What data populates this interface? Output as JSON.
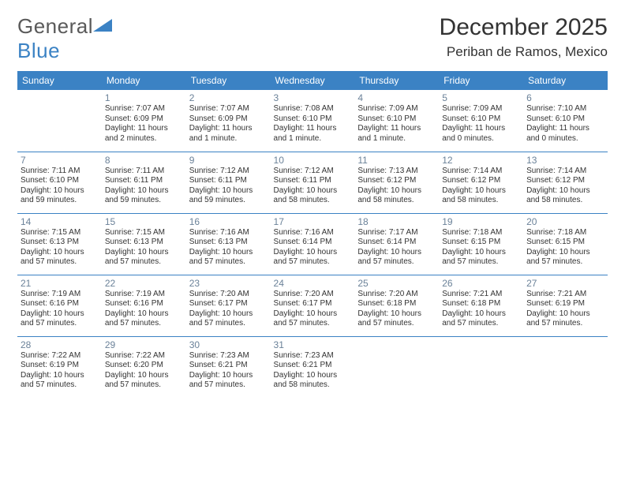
{
  "logo": {
    "text1": "General",
    "text2": "Blue"
  },
  "title": "December 2025",
  "location": "Periban de Ramos, Mexico",
  "colors": {
    "header_bg": "#3b82c4",
    "header_fg": "#ffffff",
    "daynum": "#6b8299",
    "border": "#3b82c4",
    "logo_gray": "#5a5a5a"
  },
  "weekdays": [
    "Sunday",
    "Monday",
    "Tuesday",
    "Wednesday",
    "Thursday",
    "Friday",
    "Saturday"
  ],
  "days": {
    "1": {
      "sr": "Sunrise: 7:07 AM",
      "ss": "Sunset: 6:09 PM",
      "dl": "Daylight: 11 hours and 2 minutes."
    },
    "2": {
      "sr": "Sunrise: 7:07 AM",
      "ss": "Sunset: 6:09 PM",
      "dl": "Daylight: 11 hours and 1 minute."
    },
    "3": {
      "sr": "Sunrise: 7:08 AM",
      "ss": "Sunset: 6:10 PM",
      "dl": "Daylight: 11 hours and 1 minute."
    },
    "4": {
      "sr": "Sunrise: 7:09 AM",
      "ss": "Sunset: 6:10 PM",
      "dl": "Daylight: 11 hours and 1 minute."
    },
    "5": {
      "sr": "Sunrise: 7:09 AM",
      "ss": "Sunset: 6:10 PM",
      "dl": "Daylight: 11 hours and 0 minutes."
    },
    "6": {
      "sr": "Sunrise: 7:10 AM",
      "ss": "Sunset: 6:10 PM",
      "dl": "Daylight: 11 hours and 0 minutes."
    },
    "7": {
      "sr": "Sunrise: 7:11 AM",
      "ss": "Sunset: 6:10 PM",
      "dl": "Daylight: 10 hours and 59 minutes."
    },
    "8": {
      "sr": "Sunrise: 7:11 AM",
      "ss": "Sunset: 6:11 PM",
      "dl": "Daylight: 10 hours and 59 minutes."
    },
    "9": {
      "sr": "Sunrise: 7:12 AM",
      "ss": "Sunset: 6:11 PM",
      "dl": "Daylight: 10 hours and 59 minutes."
    },
    "10": {
      "sr": "Sunrise: 7:12 AM",
      "ss": "Sunset: 6:11 PM",
      "dl": "Daylight: 10 hours and 58 minutes."
    },
    "11": {
      "sr": "Sunrise: 7:13 AM",
      "ss": "Sunset: 6:12 PM",
      "dl": "Daylight: 10 hours and 58 minutes."
    },
    "12": {
      "sr": "Sunrise: 7:14 AM",
      "ss": "Sunset: 6:12 PM",
      "dl": "Daylight: 10 hours and 58 minutes."
    },
    "13": {
      "sr": "Sunrise: 7:14 AM",
      "ss": "Sunset: 6:12 PM",
      "dl": "Daylight: 10 hours and 58 minutes."
    },
    "14": {
      "sr": "Sunrise: 7:15 AM",
      "ss": "Sunset: 6:13 PM",
      "dl": "Daylight: 10 hours and 57 minutes."
    },
    "15": {
      "sr": "Sunrise: 7:15 AM",
      "ss": "Sunset: 6:13 PM",
      "dl": "Daylight: 10 hours and 57 minutes."
    },
    "16": {
      "sr": "Sunrise: 7:16 AM",
      "ss": "Sunset: 6:13 PM",
      "dl": "Daylight: 10 hours and 57 minutes."
    },
    "17": {
      "sr": "Sunrise: 7:16 AM",
      "ss": "Sunset: 6:14 PM",
      "dl": "Daylight: 10 hours and 57 minutes."
    },
    "18": {
      "sr": "Sunrise: 7:17 AM",
      "ss": "Sunset: 6:14 PM",
      "dl": "Daylight: 10 hours and 57 minutes."
    },
    "19": {
      "sr": "Sunrise: 7:18 AM",
      "ss": "Sunset: 6:15 PM",
      "dl": "Daylight: 10 hours and 57 minutes."
    },
    "20": {
      "sr": "Sunrise: 7:18 AM",
      "ss": "Sunset: 6:15 PM",
      "dl": "Daylight: 10 hours and 57 minutes."
    },
    "21": {
      "sr": "Sunrise: 7:19 AM",
      "ss": "Sunset: 6:16 PM",
      "dl": "Daylight: 10 hours and 57 minutes."
    },
    "22": {
      "sr": "Sunrise: 7:19 AM",
      "ss": "Sunset: 6:16 PM",
      "dl": "Daylight: 10 hours and 57 minutes."
    },
    "23": {
      "sr": "Sunrise: 7:20 AM",
      "ss": "Sunset: 6:17 PM",
      "dl": "Daylight: 10 hours and 57 minutes."
    },
    "24": {
      "sr": "Sunrise: 7:20 AM",
      "ss": "Sunset: 6:17 PM",
      "dl": "Daylight: 10 hours and 57 minutes."
    },
    "25": {
      "sr": "Sunrise: 7:20 AM",
      "ss": "Sunset: 6:18 PM",
      "dl": "Daylight: 10 hours and 57 minutes."
    },
    "26": {
      "sr": "Sunrise: 7:21 AM",
      "ss": "Sunset: 6:18 PM",
      "dl": "Daylight: 10 hours and 57 minutes."
    },
    "27": {
      "sr": "Sunrise: 7:21 AM",
      "ss": "Sunset: 6:19 PM",
      "dl": "Daylight: 10 hours and 57 minutes."
    },
    "28": {
      "sr": "Sunrise: 7:22 AM",
      "ss": "Sunset: 6:19 PM",
      "dl": "Daylight: 10 hours and 57 minutes."
    },
    "29": {
      "sr": "Sunrise: 7:22 AM",
      "ss": "Sunset: 6:20 PM",
      "dl": "Daylight: 10 hours and 57 minutes."
    },
    "30": {
      "sr": "Sunrise: 7:23 AM",
      "ss": "Sunset: 6:21 PM",
      "dl": "Daylight: 10 hours and 57 minutes."
    },
    "31": {
      "sr": "Sunrise: 7:23 AM",
      "ss": "Sunset: 6:21 PM",
      "dl": "Daylight: 10 hours and 58 minutes."
    }
  },
  "grid": [
    [
      null,
      "1",
      "2",
      "3",
      "4",
      "5",
      "6"
    ],
    [
      "7",
      "8",
      "9",
      "10",
      "11",
      "12",
      "13"
    ],
    [
      "14",
      "15",
      "16",
      "17",
      "18",
      "19",
      "20"
    ],
    [
      "21",
      "22",
      "23",
      "24",
      "25",
      "26",
      "27"
    ],
    [
      "28",
      "29",
      "30",
      "31",
      null,
      null,
      null
    ]
  ]
}
